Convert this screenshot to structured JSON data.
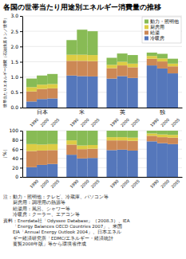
{
  "chart_data": [
    {
      "type": "bar",
      "stacked": true,
      "grid": true,
      "legend": "upper right",
      "title": "各国の世帯当たり用途別エネルギー消費量の推移",
      "ylabel": "世帯当たりエネルギー消費（石油換算トン／世帯）",
      "groups": [
        "日本",
        "米",
        "英",
        "独"
      ],
      "categories": [
        "1990",
        "2000",
        "2005",
        "1990",
        "2000",
        "2005",
        "1990",
        "2000",
        "2005",
        "1990",
        "2000",
        "2005"
      ],
      "series": [
        {
          "name": "冷暖房",
          "color": "#5577BB",
          "values": [
            0.2,
            0.28,
            0.3,
            1.05,
            1.03,
            1.02,
            0.95,
            1.03,
            0.97,
            1.38,
            1.28,
            1.12
          ]
        },
        {
          "name": "給湯",
          "color": "#CC8855",
          "values": [
            0.33,
            0.33,
            0.33,
            0.48,
            0.5,
            0.5,
            0.34,
            0.35,
            0.35,
            0.22,
            0.23,
            0.23
          ]
        },
        {
          "name": "厨房用",
          "color": "#DDCC44",
          "values": [
            0.14,
            0.14,
            0.14,
            0.2,
            0.2,
            0.2,
            0.11,
            0.12,
            0.12,
            0.09,
            0.1,
            0.09
          ]
        },
        {
          "name": "動力・照明他",
          "color": "#88BB55",
          "values": [
            0.28,
            0.3,
            0.33,
            0.48,
            0.82,
            0.78,
            0.23,
            0.27,
            0.28,
            0.11,
            0.15,
            0.16
          ]
        }
      ],
      "ylim": [
        0,
        3
      ],
      "yticks": [
        {
          "value": 0,
          "label": "0.0"
        },
        0.5,
        {
          "value": 1,
          "label": "1.0"
        },
        1.5,
        {
          "value": 2,
          "label": "2.0"
        },
        2.5,
        {
          "value": 3,
          "label": "3.0"
        }
      ]
    },
    {
      "type": "bar",
      "stacked": true,
      "grid": true,
      "ylabel": "（%）",
      "categories": [
        "1990",
        "2000",
        "2005",
        "1990",
        "2000",
        "2005",
        "1990",
        "2000",
        "2005",
        "1990",
        "2000",
        "2005"
      ],
      "series": [
        {
          "color": "#5577BB",
          "values": [
            21,
            26,
            28,
            48,
            40,
            41,
            58,
            59,
            57,
            77,
            73,
            71
          ]
        },
        {
          "color": "#CC8855",
          "values": [
            35,
            31,
            30,
            22,
            20,
            20,
            21,
            20,
            21,
            12,
            13,
            14
          ]
        },
        {
          "color": "#DDCC44",
          "values": [
            15,
            13,
            13,
            9,
            8,
            8,
            7,
            7,
            7,
            5,
            6,
            6
          ]
        },
        {
          "color": "#88BB55",
          "values": [
            29,
            30,
            29,
            21,
            32,
            31,
            14,
            14,
            15,
            6,
            8,
            9
          ]
        }
      ],
      "ylim": [
        0,
        100
      ],
      "yticks": [
        0,
        20,
        40,
        60,
        80,
        100
      ],
      "annotations": [
        "注：動力・照明他：テレビ、冷蔵庫、パソコン等",
        "　　厨房用：調理用の熱源等",
        "　　給湯用：風呂、シャワー等",
        "　　冷暖房：クーラー、エアコン等",
        "資料：Enerdata社「Odyssee Database」（2008.3）、IEA",
        "　　「Energy Balances OECD Countries 2007」、米国",
        "　　EIA「Annual Energy Outlook 2004」、日本エネル",
        "　　ギー経済研究所「EDMC/エネルギー・経済統計",
        "　　要覧2008年版」等から環境省作成"
      ]
    }
  ]
}
